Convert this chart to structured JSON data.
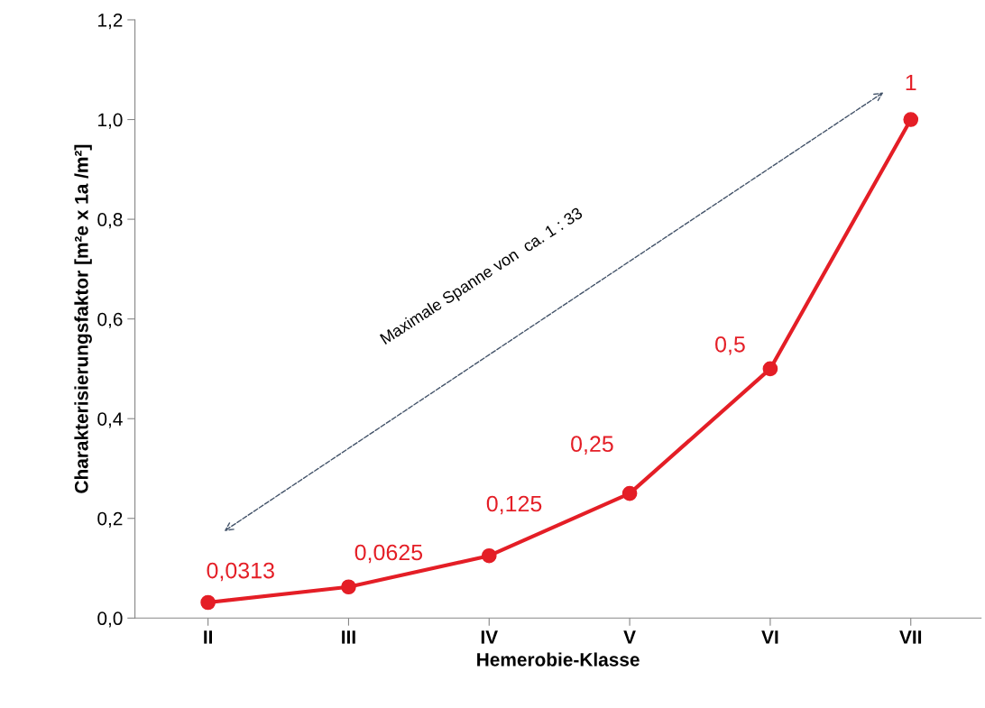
{
  "chart_data": {
    "type": "line",
    "categories": [
      "II",
      "III",
      "IV",
      "V",
      "VI",
      "VII"
    ],
    "series": [
      {
        "color": "#e41e26",
        "values": [
          0.0313,
          0.0625,
          0.125,
          0.25,
          0.5,
          1
        ],
        "value_labels": [
          "0,0313",
          "0,0625",
          "0,125",
          "0,25",
          "0,5",
          "1"
        ]
      }
    ],
    "marker": "circle",
    "line_style": "solid",
    "xlabel": "Hemerobie-Klasse",
    "ylabel": "Charakterisierungsfaktor [m²e x 1a /m²]",
    "ylim": [
      0,
      1.2
    ],
    "yticks": [
      {
        "value": 0,
        "label": "0,0"
      },
      {
        "value": 0.2,
        "label": "0,2"
      },
      {
        "value": 0.4,
        "label": "0,4"
      },
      {
        "value": 0.6,
        "label": "0,6"
      },
      {
        "value": 0.8,
        "label": "0,8"
      },
      {
        "value": 1.0,
        "label": "1,0"
      },
      {
        "value": 1.2,
        "label": "1,2"
      }
    ],
    "grid": false,
    "annotations": [
      "Maximale Spanne von  ca. 1 : 33"
    ]
  }
}
